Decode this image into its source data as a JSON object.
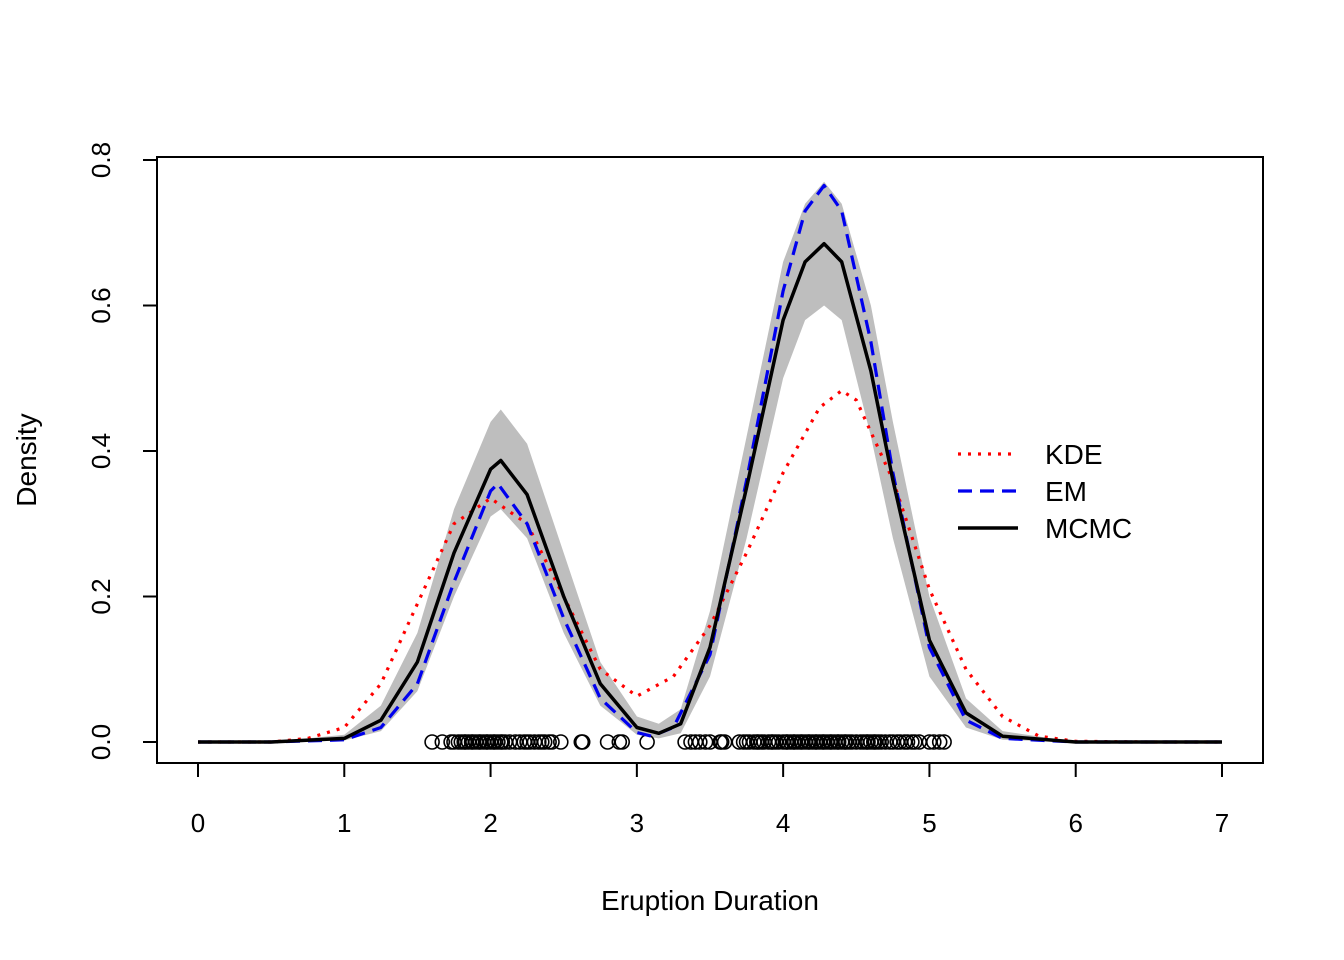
{
  "chart_data": {
    "type": "line",
    "title": "",
    "xlabel": "Eruption Duration",
    "ylabel": "Density",
    "xlim": [
      0,
      7
    ],
    "ylim": [
      0,
      0.8
    ],
    "x_ticks": [
      "0",
      "1",
      "2",
      "3",
      "4",
      "5",
      "6",
      "7"
    ],
    "y_ticks": [
      "0.0",
      "0.2",
      "0.4",
      "0.6",
      "0.8"
    ],
    "grid": false,
    "legend_position": "right",
    "legend": [
      "KDE",
      "EM",
      "MCMC"
    ],
    "series": [
      {
        "name": "KDE",
        "style": "dotted",
        "color": "#ff0000",
        "x": [
          0,
          0.25,
          0.5,
          0.75,
          1.0,
          1.25,
          1.5,
          1.75,
          2.0,
          2.25,
          2.5,
          2.75,
          3.0,
          3.25,
          3.5,
          3.75,
          4.0,
          4.25,
          4.4,
          4.5,
          4.75,
          5.0,
          5.25,
          5.5,
          5.75,
          6.0,
          6.5,
          7.0
        ],
        "y": [
          0.0,
          0.0,
          0.0,
          0.005,
          0.02,
          0.08,
          0.19,
          0.3,
          0.335,
          0.3,
          0.2,
          0.1,
          0.063,
          0.09,
          0.16,
          0.26,
          0.37,
          0.46,
          0.483,
          0.47,
          0.36,
          0.21,
          0.1,
          0.035,
          0.008,
          0.001,
          0.0,
          0.0
        ]
      },
      {
        "name": "EM",
        "style": "dashed",
        "color": "#0000ee",
        "x": [
          0,
          0.5,
          1.0,
          1.25,
          1.5,
          1.75,
          2.0,
          2.05,
          2.25,
          2.5,
          2.75,
          3.0,
          3.1,
          3.25,
          3.5,
          3.75,
          4.0,
          4.15,
          4.28,
          4.4,
          4.6,
          4.75,
          5.0,
          5.25,
          5.5,
          6.0,
          7.0
        ],
        "y": [
          0.0,
          0.0,
          0.003,
          0.02,
          0.08,
          0.22,
          0.345,
          0.355,
          0.3,
          0.17,
          0.06,
          0.013,
          0.008,
          0.02,
          0.12,
          0.36,
          0.62,
          0.73,
          0.765,
          0.73,
          0.55,
          0.37,
          0.13,
          0.03,
          0.005,
          0.0,
          0.0
        ]
      },
      {
        "name": "MCMC",
        "style": "solid",
        "color": "#000000",
        "x": [
          0,
          0.5,
          1.0,
          1.25,
          1.5,
          1.75,
          2.0,
          2.07,
          2.25,
          2.5,
          2.75,
          3.0,
          3.15,
          3.3,
          3.5,
          3.75,
          4.0,
          4.15,
          4.28,
          4.4,
          4.6,
          4.75,
          5.0,
          5.25,
          5.5,
          6.0,
          7.0
        ],
        "y": [
          0.0,
          0.0,
          0.005,
          0.03,
          0.11,
          0.26,
          0.375,
          0.387,
          0.34,
          0.2,
          0.08,
          0.02,
          0.012,
          0.025,
          0.13,
          0.35,
          0.58,
          0.66,
          0.685,
          0.66,
          0.51,
          0.36,
          0.14,
          0.04,
          0.008,
          0.0,
          0.0
        ]
      }
    ],
    "band": {
      "color": "#bebebe",
      "x": [
        0,
        0.5,
        1.0,
        1.25,
        1.5,
        1.75,
        2.0,
        2.07,
        2.25,
        2.5,
        2.75,
        3.0,
        3.15,
        3.3,
        3.5,
        3.75,
        4.0,
        4.15,
        4.28,
        4.4,
        4.6,
        4.75,
        5.0,
        5.25,
        5.5,
        6.0,
        7.0
      ],
      "lower": [
        0.0,
        0.0,
        0.002,
        0.015,
        0.07,
        0.2,
        0.31,
        0.32,
        0.28,
        0.15,
        0.05,
        0.01,
        0.005,
        0.012,
        0.09,
        0.28,
        0.5,
        0.58,
        0.6,
        0.58,
        0.42,
        0.28,
        0.09,
        0.02,
        0.003,
        0.0,
        0.0
      ],
      "upper": [
        0.0,
        0.0,
        0.01,
        0.05,
        0.15,
        0.32,
        0.44,
        0.457,
        0.41,
        0.26,
        0.11,
        0.035,
        0.025,
        0.045,
        0.18,
        0.42,
        0.66,
        0.74,
        0.77,
        0.74,
        0.6,
        0.44,
        0.2,
        0.06,
        0.015,
        0.0,
        0.0
      ]
    },
    "rug_points": [
      1.6,
      1.67,
      1.73,
      1.75,
      1.78,
      1.8,
      1.82,
      1.83,
      1.85,
      1.87,
      1.88,
      1.9,
      1.92,
      1.93,
      1.95,
      1.97,
      1.98,
      2.0,
      2.02,
      2.03,
      2.05,
      2.07,
      2.08,
      2.1,
      2.13,
      2.17,
      2.2,
      2.23,
      2.25,
      2.27,
      2.3,
      2.33,
      2.35,
      2.37,
      2.4,
      2.42,
      2.48,
      2.62,
      2.63,
      2.8,
      2.88,
      2.9,
      3.07,
      3.33,
      3.37,
      3.4,
      3.43,
      3.47,
      3.5,
      3.57,
      3.58,
      3.6,
      3.7,
      3.73,
      3.75,
      3.77,
      3.8,
      3.82,
      3.83,
      3.85,
      3.87,
      3.9,
      3.92,
      3.93,
      3.95,
      3.97,
      4.0,
      4.02,
      4.03,
      4.05,
      4.07,
      4.08,
      4.1,
      4.12,
      4.13,
      4.15,
      4.17,
      4.18,
      4.2,
      4.22,
      4.23,
      4.25,
      4.27,
      4.28,
      4.3,
      4.32,
      4.33,
      4.35,
      4.37,
      4.38,
      4.4,
      4.42,
      4.43,
      4.45,
      4.47,
      4.5,
      4.53,
      4.55,
      4.57,
      4.58,
      4.6,
      4.62,
      4.63,
      4.65,
      4.67,
      4.7,
      4.73,
      4.75,
      4.78,
      4.8,
      4.83,
      4.85,
      4.88,
      4.9,
      4.93,
      5.0,
      5.03,
      5.07,
      5.1
    ]
  }
}
